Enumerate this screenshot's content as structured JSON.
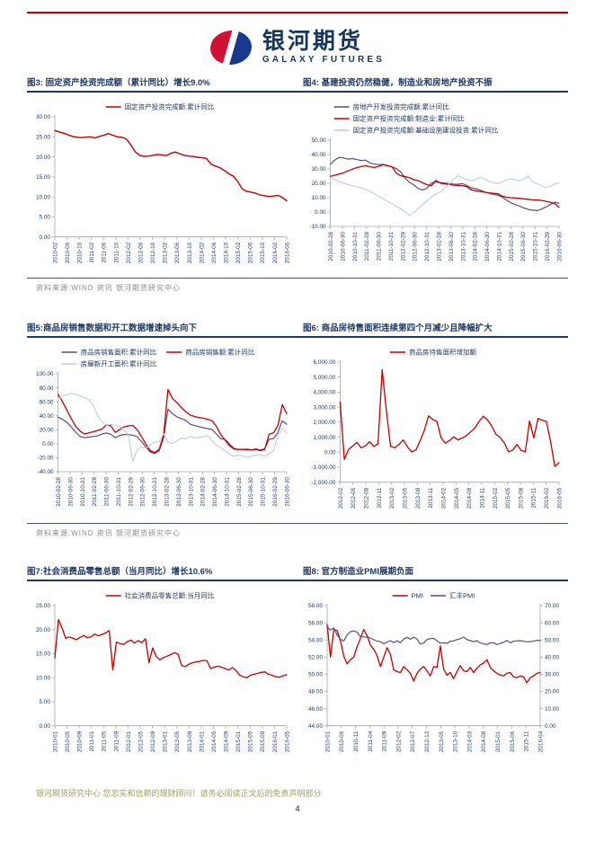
{
  "header": {
    "brand_cn": "银河期货",
    "brand_en": "GALAXY FUTURES"
  },
  "colors": {
    "accent_red": "#C00000",
    "navy": "#1F3864",
    "series_red": "#C00000",
    "series_purple": "#5F497A",
    "series_light": "#C0CDDF",
    "source_gray": "#8a8a8a",
    "footer_olive": "#A79D5E"
  },
  "sections": [
    {
      "left_title": "图3: 固定资产投资完成额（累计同比）增长9.0%",
      "right_title": "图4: 基建投资仍然稳健，制造业和房地产投资不振",
      "source": "资料来源:WIND 资讯  银河期货研究中心"
    },
    {
      "left_title": "图5:商品房销售数据和开工数据增速掉头向下",
      "right_title": "图6: 商品房待售面积连续第四个月减少且降幅扩大",
      "source": "资料来源:WIND 资讯  银河期货研究中心"
    },
    {
      "left_title": "图7:社会消费品零售总额（当月同比）增长10.6%",
      "right_title": "图8: 官方制造业PMI展期负面",
      "source": ""
    }
  ],
  "footer": {
    "disclaimer": "银河期货研究中心 您忠实和信赖的理财顾问！请务必阅读正文后的免责声明部分",
    "page_number": "4"
  },
  "chart_data": [
    {
      "id": "fig3",
      "type": "line",
      "legend_align": "center",
      "legend_rows": [
        [
          0
        ]
      ],
      "x_labels": [
        "2010-02",
        "2010-06",
        "2010-10",
        "2011-02",
        "2011-06",
        "2011-10",
        "2012-02",
        "2012-06",
        "2012-10",
        "2013-02",
        "2013-06",
        "2013-10",
        "2014-02",
        "2014-06",
        "2014-10",
        "2015-02",
        "2015-06",
        "2015-10",
        "2016-02",
        "2016-06"
      ],
      "y_left": {
        "min": 0,
        "max": 30,
        "ticks": [
          "30.00",
          "25.00",
          "20.00",
          "15.00",
          "10.00",
          "5.00",
          "0.00"
        ]
      },
      "series": [
        {
          "name": "固定资产投资完成额:累计同比",
          "color": "#C00000",
          "width": 1.4,
          "axis": "left",
          "values": [
            26.6,
            26.2,
            25.9,
            25.5,
            25.1,
            24.9,
            24.8,
            24.9,
            25.0,
            24.7,
            25.1,
            25.4,
            25.8,
            25.4,
            25.0,
            24.9,
            24.5,
            23.1,
            21.3,
            20.4,
            20.1,
            20.2,
            20.4,
            20.6,
            20.5,
            20.3,
            20.9,
            21.2,
            20.8,
            20.4,
            20.2,
            20.1,
            19.9,
            19.8,
            19.6,
            18.2,
            17.7,
            17.3,
            16.6,
            15.8,
            15.2,
            13.9,
            12.0,
            11.4,
            11.2,
            10.9,
            10.5,
            10.3,
            10.1,
            10.2,
            10.4,
            9.9,
            9.0
          ]
        }
      ]
    },
    {
      "id": "fig4",
      "type": "line",
      "legend_align": "left",
      "legend_rows": [
        [
          0
        ],
        [
          1
        ],
        [
          2
        ]
      ],
      "x_labels": [
        "2010-02-28",
        "2010-06-30",
        "2010-10-31",
        "2011-02-28",
        "2011-06-30",
        "2011-10-31",
        "2012-02-29",
        "2012-06-30",
        "2012-10-31",
        "2013-02-28",
        "2013-06-30",
        "2013-10-31",
        "2014-02-28",
        "2014-06-30",
        "2014-10-31",
        "2015-02-28",
        "2015-06-30",
        "2015-10-31",
        "2016-02-29",
        "2016-06-30"
      ],
      "y_left": {
        "min": -10,
        "max": 50,
        "ticks": [
          "50.00",
          "40.00",
          "30.00",
          "20.00",
          "10.00",
          "0.00",
          "-10.00"
        ]
      },
      "series": [
        {
          "name": "房地产开发投资完成额:累计同比",
          "color": "#5F497A",
          "width": 1.2,
          "axis": "left",
          "values": [
            33.1,
            36.2,
            38.0,
            37.6,
            36.8,
            37.2,
            36.5,
            35.8,
            36.1,
            34.2,
            33.4,
            33.0,
            33.2,
            32.4,
            31.3,
            30.3,
            27.8,
            23.5,
            20.6,
            18.8,
            16.3,
            15.4,
            16.6,
            20.3,
            20.9,
            20.5,
            20.2,
            19.8,
            19.5,
            19.3,
            19.8,
            18.5,
            16.8,
            16.4,
            15.4,
            14.1,
            13.2,
            12.4,
            11.8,
            10.5,
            8.5,
            6.5,
            5.2,
            4.2,
            2.8,
            1.8,
            1.3,
            1.0,
            2.0,
            3.5,
            5.2,
            6.8,
            6.1
          ]
        },
        {
          "name": "固定资产投资完成额:制造业:累计同比",
          "color": "#C00000",
          "width": 1.3,
          "axis": "left",
          "values": [
            24.9,
            25.6,
            26.4,
            27.3,
            28.6,
            29.8,
            30.9,
            31.6,
            32.2,
            31.5,
            31.0,
            31.8,
            32.9,
            32.2,
            31.6,
            27.0,
            25.2,
            24.7,
            23.8,
            22.5,
            21.8,
            20.3,
            19.0,
            18.4,
            22.0,
            20.1,
            19.6,
            19.1,
            18.7,
            18.5,
            18.3,
            17.6,
            15.5,
            14.9,
            14.3,
            13.8,
            13.4,
            13.0,
            12.8,
            11.2,
            10.3,
            10.0,
            9.8,
            9.5,
            9.2,
            8.9,
            8.5,
            8.3,
            8.1,
            7.5,
            6.8,
            6.0,
            3.3
          ]
        },
        {
          "name": "固定资产投资完成额:基础设施建设投资:累计同比",
          "color": "#C0CDDF",
          "width": 1.1,
          "axis": "left",
          "values": [
            23.7,
            22.5,
            21.2,
            20.1,
            19.2,
            18.3,
            17.6,
            16.8,
            15.9,
            14.5,
            12.8,
            11.0,
            9.2,
            7.5,
            5.8,
            4.0,
            2.1,
            0.2,
            -2.4,
            -0.5,
            2.5,
            5.2,
            8.0,
            10.5,
            12.6,
            13.8,
            16.5,
            19.5,
            22.5,
            25.3,
            23.8,
            22.6,
            21.8,
            22.4,
            24.1,
            23.2,
            21.5,
            20.3,
            19.8,
            20.9,
            22.3,
            23.1,
            22.4,
            21.7,
            22.9,
            25.2,
            21.0,
            19.9,
            18.2,
            16.9,
            17.8,
            19.6,
            20.5
          ]
        }
      ]
    },
    {
      "id": "fig5",
      "type": "line",
      "legend_align": "left",
      "legend_rows": [
        [
          0,
          1
        ],
        [
          2
        ]
      ],
      "x_labels": [
        "2010-02-28",
        "2010-06-30",
        "2010-10-31",
        "2011-02-28",
        "2011-06-30",
        "2011-10-31",
        "2012-02-29",
        "2012-06-30",
        "2012-10-31",
        "2013-02-28",
        "2013-06-30",
        "2013-10-31",
        "2014-02-28",
        "2014-06-30",
        "2014-10-31",
        "2015-02-28",
        "2015-06-30",
        "2015-10-31",
        "2016-02-29",
        "2016-06-30"
      ],
      "y_left": {
        "min": -40,
        "max": 100,
        "ticks": [
          "100.00",
          "80.00",
          "60.00",
          "40.00",
          "20.00",
          "0.00",
          "-20.00",
          "-40.00"
        ]
      },
      "series": [
        {
          "name": "商品房销售面积:累计同比",
          "color": "#5F497A",
          "width": 1.2,
          "axis": "left",
          "values": [
            38.0,
            35.0,
            30.5,
            24.0,
            16.5,
            10.5,
            8.7,
            9.5,
            10.4,
            11.2,
            13.8,
            15.2,
            13.5,
            8.5,
            11.9,
            13.2,
            13.0,
            12.1,
            9.9,
            3.0,
            -5.0,
            -12.0,
            -14.0,
            -10.0,
            8.0,
            49.5,
            43.0,
            38.5,
            36.0,
            33.5,
            28.0,
            26.0,
            24.5,
            23.0,
            21.5,
            20.5,
            14.0,
            7.2,
            6.0,
            -0.5,
            -6.5,
            -8.2,
            -8.0,
            -7.8,
            -8.6,
            -7.4,
            -9.0,
            -7.2,
            6.5,
            7.3,
            15.8,
            33.0,
            28.0
          ]
        },
        {
          "name": "商品房销售额:累计同比",
          "color": "#C00000",
          "width": 1.3,
          "axis": "left",
          "values": [
            70.5,
            60.0,
            48.0,
            36.0,
            25.0,
            18.0,
            14.0,
            15.5,
            17.2,
            18.9,
            21.0,
            26.9,
            25.8,
            16.2,
            20.3,
            24.1,
            25.6,
            26.1,
            20.0,
            10.0,
            -1.0,
            -10.0,
            -12.5,
            -8.0,
            12.0,
            77.6,
            65.0,
            59.0,
            52.0,
            46.0,
            41.0,
            39.0,
            37.5,
            36.5,
            35.0,
            33.0,
            25.0,
            13.0,
            5.0,
            -3.0,
            -7.5,
            -8.3,
            -8.0,
            -8.7,
            -9.0,
            -8.0,
            -10.0,
            -8.2,
            13.5,
            15.5,
            26.0,
            56.0,
            43.0
          ]
        },
        {
          "name": "房屋新开工面积:累计同比",
          "color": "#C0CDDF",
          "width": 1.1,
          "axis": "left",
          "values": [
            64.0,
            68.0,
            70.5,
            72.0,
            70.5,
            68.5,
            66.0,
            63.0,
            55.0,
            40.0,
            31.0,
            26.5,
            27.8,
            26.0,
            24.8,
            20.0,
            12.0,
            -25.5,
            -8.0,
            -4.5,
            -6.5,
            -2.0,
            2.5,
            3.0,
            14.5,
            2.0,
            0.3,
            4.5,
            8.1,
            7.2,
            10.3,
            8.5,
            9.0,
            10.2,
            11.8,
            5.0,
            -2.1,
            -5.5,
            -10.2,
            -15.0,
            -17.8,
            -16.2,
            -17.4,
            -19.6,
            -17.9,
            -16.1,
            -15.4,
            -17.8,
            -14.3,
            -10.1,
            10.5,
            21.8,
            14.8
          ]
        }
      ]
    },
    {
      "id": "fig6",
      "type": "line",
      "legend_align": "center",
      "legend_rows": [
        [
          0
        ]
      ],
      "x_labels": [
        "2012-02",
        "2012-05",
        "2012-08",
        "2012-11",
        "2013-02",
        "2013-05",
        "2013-08",
        "2013-11",
        "2014-02",
        "2014-05",
        "2014-08",
        "2014-11",
        "2015-02",
        "2015-05",
        "2015-08",
        "2015-11",
        "2016-02",
        "2016-05"
      ],
      "y_left": {
        "min": -2000,
        "max": 6000,
        "ticks": [
          "6,000.00",
          "5,000.00",
          "4,000.00",
          "3,000.00",
          "2,000.00",
          "1,000.00",
          "0.00",
          "-1,000.00",
          "-2,000.00"
        ]
      },
      "series": [
        {
          "name": "商品房待售面积增加额",
          "color": "#C00000",
          "width": 1.3,
          "axis": "left",
          "values": [
            3350,
            -480,
            180,
            420,
            650,
            300,
            420,
            700,
            380,
            560,
            5500,
            2750,
            380,
            300,
            520,
            820,
            350,
            20,
            150,
            750,
            1450,
            2420,
            2180,
            2050,
            950,
            600,
            780,
            1020,
            820,
            950,
            1100,
            1350,
            1600,
            2050,
            2400,
            2150,
            1750,
            1200,
            980,
            620,
            30,
            150,
            520,
            120,
            30,
            2080,
            950,
            2250,
            2120,
            2050,
            700,
            -950,
            -700
          ]
        }
      ]
    },
    {
      "id": "fig7",
      "type": "line",
      "legend_align": "center",
      "legend_rows": [
        [
          0
        ]
      ],
      "x_labels": [
        "2010-01",
        "2010-05",
        "2010-09",
        "2011-01",
        "2011-05",
        "2011-09",
        "2012-01",
        "2012-05",
        "2012-09",
        "2013-01",
        "2013-05",
        "2013-09",
        "2014-01",
        "2014-05",
        "2014-09",
        "2015-01",
        "2015-05",
        "2015-09",
        "2016-01",
        "2016-05"
      ],
      "y_left": {
        "min": 0,
        "max": 25,
        "ticks": [
          "25.00",
          "20.00",
          "15.00",
          "10.00",
          "5.00",
          "0.00"
        ]
      },
      "series": [
        {
          "name": "社会消费品零售总额:当月同比",
          "color": "#C00000",
          "width": 1.3,
          "axis": "left",
          "values": [
            14.1,
            22.1,
            20.3,
            18.2,
            18.5,
            18.2,
            17.9,
            18.4,
            18.8,
            18.3,
            18.5,
            19.1,
            18.7,
            19.0,
            19.3,
            19.8,
            11.6,
            17.4,
            17.1,
            16.9,
            17.5,
            17.8,
            17.2,
            17.7,
            17.3,
            18.1,
            13.1,
            16.2,
            14.4,
            13.7,
            14.2,
            14.5,
            14.8,
            15.2,
            14.9,
            12.5,
            12.3,
            12.8,
            13.1,
            13.3,
            13.4,
            13.6,
            13.5,
            11.9,
            12.2,
            12.4,
            12.2,
            11.9,
            11.6,
            12.1,
            11.5,
            10.5,
            10.2,
            10.0,
            10.5,
            10.7,
            10.9,
            11.1,
            11.2,
            10.7,
            10.5,
            10.2,
            10.1,
            10.4,
            10.6
          ]
        }
      ]
    },
    {
      "id": "fig8",
      "type": "line",
      "legend_align": "center",
      "legend_rows": [
        [
          0,
          1
        ]
      ],
      "x_labels": [
        "2010-01",
        "2010-06",
        "2010-11",
        "2011-04",
        "2011-09",
        "2012-02",
        "2012-07",
        "2012-12",
        "2013-05",
        "2013-10",
        "2014-03",
        "2014-08",
        "2015-01",
        "2015-06",
        "2015-11",
        "2016-04"
      ],
      "y_left": {
        "min": 44,
        "max": 58,
        "ticks": [
          "58.00",
          "56.00",
          "54.00",
          "52.00",
          "50.00",
          "48.00",
          "46.00",
          "44.00"
        ]
      },
      "y_right": {
        "min": 0,
        "max": 70,
        "ticks": [
          "70.00",
          "60.00",
          "50.00",
          "40.00",
          "30.00",
          "20.00",
          "10.00",
          "0.00"
        ]
      },
      "series": [
        {
          "name": "PMI",
          "color": "#C00000",
          "width": 1.3,
          "axis": "left",
          "values": [
            55.8,
            52.0,
            55.2,
            55.1,
            53.9,
            52.1,
            51.2,
            51.7,
            52.0,
            53.2,
            54.2,
            55.2,
            54.5,
            53.4,
            52.9,
            52.2,
            50.9,
            52.0,
            53.1,
            52.3,
            50.5,
            50.3,
            50.2,
            50.9,
            50.5,
            50.1,
            49.2,
            50.1,
            50.6,
            50.9,
            50.4,
            49.8,
            50.9,
            50.8,
            53.3,
            50.6,
            49.9,
            50.2,
            49.5,
            50.3,
            51.0,
            50.4,
            50.3,
            50.8,
            50.2,
            50.7,
            51.1,
            51.3,
            51.7,
            50.8,
            50.4,
            50.1,
            49.9,
            49.8,
            50.1,
            50.2,
            49.7,
            49.6,
            49.8,
            49.7,
            49.0,
            49.6,
            49.8,
            50.1,
            50.2
          ]
        },
        {
          "name": "汇丰PMI",
          "color": "#5F497A",
          "width": 1.2,
          "axis": "right",
          "values": [
            57.4,
            55.8,
            57.0,
            52.7,
            50.4,
            49.4,
            52.9,
            54.8,
            55.3,
            54.5,
            51.9,
            51.8,
            51.7,
            51.1,
            50.1,
            49.3,
            48.9,
            47.7,
            48.7,
            49.6,
            48.3,
            49.5,
            48.4,
            50.5,
            51.5,
            50.4,
            51.6,
            50.4,
            47.6,
            48.2,
            50.2,
            50.8,
            50.9,
            49.5,
            48.1,
            48.3,
            48.0,
            49.2,
            49.4,
            50.2,
            50.7,
            51.7,
            50.2,
            49.6,
            48.9,
            49.6,
            48.2,
            47.8,
            47.3,
            48.2,
            48.4,
            47.2,
            48.0,
            48.6,
            49.7,
            48.4,
            49.2,
            49.4,
            49.6,
            49.2,
            48.9,
            49.0,
            49.2,
            49.8,
            49.6
          ]
        }
      ]
    }
  ]
}
